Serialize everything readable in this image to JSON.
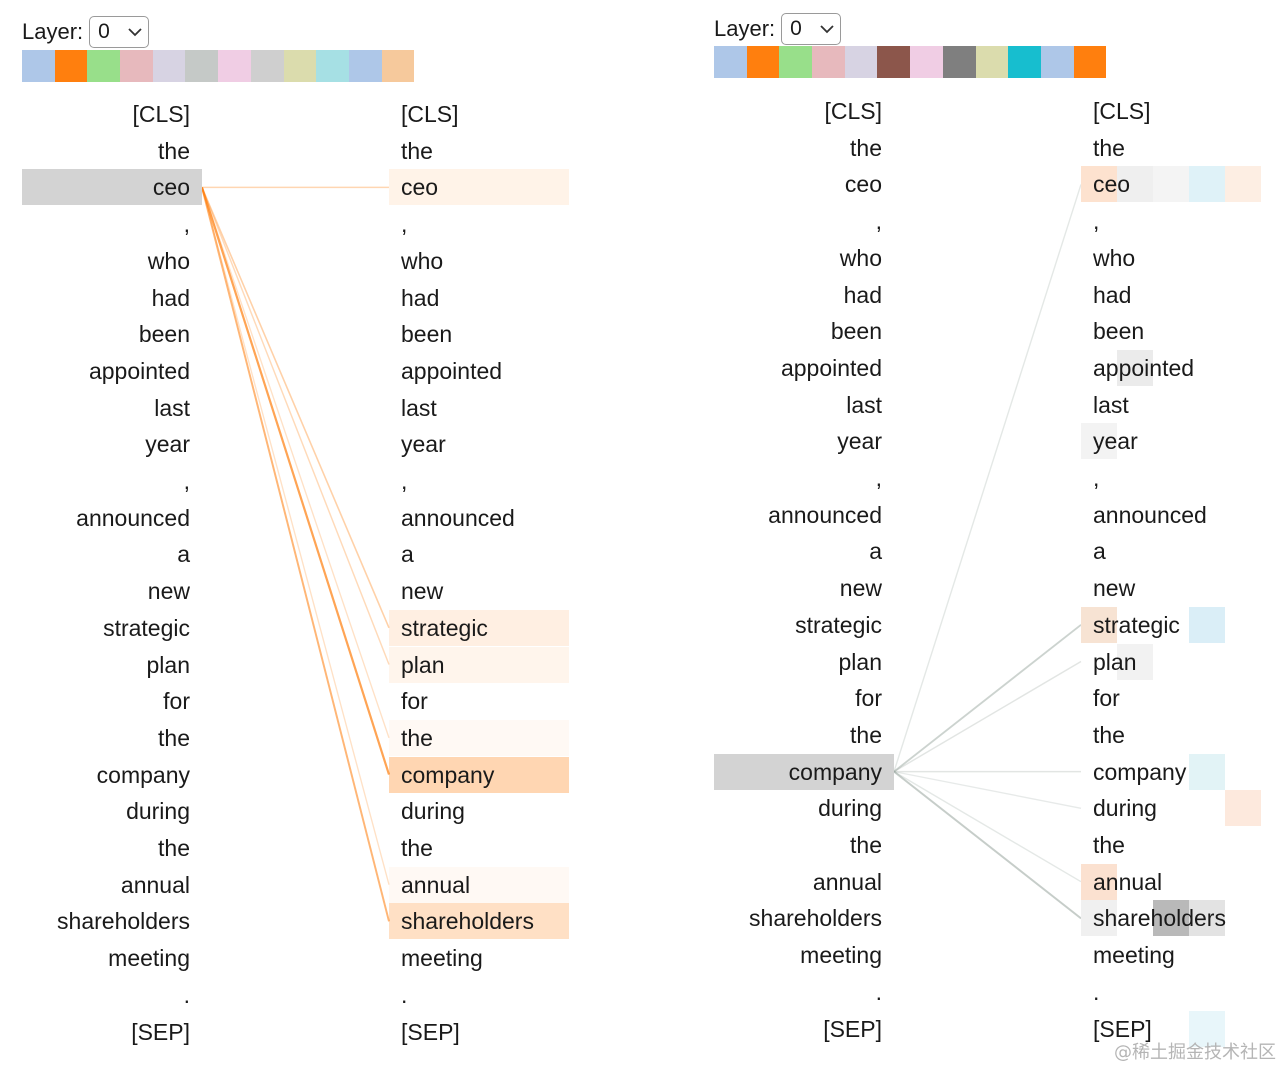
{
  "tokens": [
    "[CLS]",
    "the",
    "ceo",
    ",",
    "who",
    "had",
    "been",
    "appointed",
    "last",
    "year",
    ",",
    "announced",
    "a",
    "new",
    "strategic",
    "plan",
    "for",
    "the",
    "company",
    "during",
    "the",
    "annual",
    "shareholders",
    "meeting",
    ".",
    "[SEP]"
  ],
  "left_panel": {
    "layer_label": "Layer:",
    "layer_value": "0",
    "head_colors": [
      "#aec7e8",
      "#ff7f0e",
      "#98df8a",
      "#e7b9bd",
      "#d7d3e3",
      "#c5c9c7",
      "#f0cde4",
      "#cfcfcf",
      "#dbdcad",
      "#a6e0e4",
      "#aec7e8",
      "#f6c99c"
    ],
    "selected_token_index": 2,
    "head_color": "#ff7f0e",
    "attention": [
      {
        "target": 2,
        "weight": 0.12
      },
      {
        "target": 14,
        "weight": 0.15
      },
      {
        "target": 15,
        "weight": 0.1
      },
      {
        "target": 18,
        "weight": 0.4
      },
      {
        "target": 22,
        "weight": 0.3
      },
      {
        "target": 17,
        "weight": 0.06
      },
      {
        "target": 21,
        "weight": 0.06
      }
    ]
  },
  "right_panel": {
    "layer_label": "Layer:",
    "layer_value": "0",
    "head_colors": [
      "#aec7e8",
      "#ff7f0e",
      "#98df8a",
      "#e7b9bd",
      "#d7d3e3",
      "#8c564b",
      "#f0cde4",
      "#7f7f7f",
      "#dbdcad",
      "#17becf",
      "#aec7e8",
      "#ff7f0e"
    ],
    "selected_token_index": 18,
    "head_color": "#9aa7a0",
    "attention": [
      {
        "target": 2,
        "weight": 0.08
      },
      {
        "target": 14,
        "weight": 0.25
      },
      {
        "target": 15,
        "weight": 0.1
      },
      {
        "target": 18,
        "weight": 0.1
      },
      {
        "target": 22,
        "weight": 0.3
      },
      {
        "target": 21,
        "weight": 0.08
      },
      {
        "target": 19,
        "weight": 0.06
      }
    ],
    "heat_cells": [
      {
        "row": 2,
        "col": 0,
        "color": "#fde2cf"
      },
      {
        "row": 2,
        "col": 1,
        "color": "#efefef"
      },
      {
        "row": 2,
        "col": 2,
        "color": "#f4f4f4"
      },
      {
        "row": 2,
        "col": 3,
        "color": "#dff2f8"
      },
      {
        "row": 2,
        "col": 4,
        "color": "#fdeee3"
      },
      {
        "row": 7,
        "col": 1,
        "color": "#ebebeb"
      },
      {
        "row": 9,
        "col": 0,
        "color": "#f3f3f3"
      },
      {
        "row": 14,
        "col": 0,
        "color": "#f7e3d3"
      },
      {
        "row": 14,
        "col": 3,
        "color": "#daeef7"
      },
      {
        "row": 15,
        "col": 1,
        "color": "#f2f2f2"
      },
      {
        "row": 18,
        "col": 3,
        "color": "#e2f3f6"
      },
      {
        "row": 19,
        "col": 4,
        "color": "#fde9dd"
      },
      {
        "row": 21,
        "col": 0,
        "color": "#fbe1d0"
      },
      {
        "row": 22,
        "col": 0,
        "color": "#f0f0f0"
      },
      {
        "row": 22,
        "col": 2,
        "color": "#b9b9b9"
      },
      {
        "row": 22,
        "col": 3,
        "color": "#e3e3e3"
      },
      {
        "row": 25,
        "col": 3,
        "color": "#e8f6fa"
      }
    ]
  },
  "watermark": "@稀土掘金技术社区"
}
